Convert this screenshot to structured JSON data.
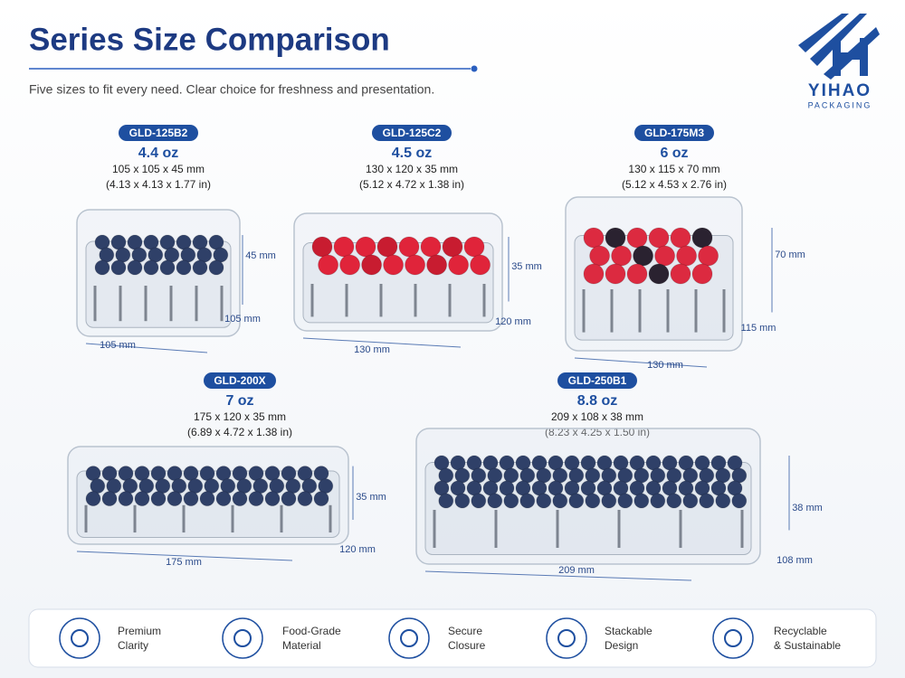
{
  "header": {
    "title": "Series Size Comparison",
    "subtitle": "Five sizes to fit every need. Clear choice for freshness and presentation."
  },
  "logo": {
    "name": "YIHAO",
    "tagline": "PACKAGING"
  },
  "products": [
    {
      "model": "GLD-125B2",
      "capacity": "4.4 oz",
      "dims_mm": "105 x 105 x 45 mm",
      "dims_in": "(4.13 x 4.13 x 1.77 in)",
      "height_label": "45 mm",
      "depth_label": "105 mm",
      "width_label": "105 mm"
    },
    {
      "model": "GLD-125C2",
      "capacity": "4.5 oz",
      "dims_mm": "130 x 120 x 35 mm",
      "dims_in": "(5.12 x 4.72 x 1.38 in)",
      "height_label": "35 mm",
      "depth_label": "120 mm",
      "width_label": "130 mm"
    },
    {
      "model": "GLD-175M3",
      "capacity": "6 oz",
      "dims_mm": "130 x 115 x 70 mm",
      "dims_in": "(5.12 x 4.53 x 2.76 in)",
      "height_label": "70 mm",
      "depth_label": "115 mm",
      "width_label": "130 mm"
    },
    {
      "model": "GLD-200X",
      "capacity": "7 oz",
      "dims_mm": "175 x 120 x 35 mm",
      "dims_in": "(6.89 x 4.72 x 1.38 in)",
      "height_label": "35 mm",
      "depth_label": "120 mm",
      "width_label": "175 mm"
    },
    {
      "model": "GLD-250B1",
      "capacity": "8.8 oz",
      "dims_mm": "209 x 108 x 38 mm",
      "dims_in": "(8.23 x 4.25 x 1.50 in)",
      "height_label": "38 mm",
      "depth_label": "108 mm",
      "width_label": "209 mm"
    }
  ],
  "features": [
    {
      "lines": [
        "Premium",
        "Clarity"
      ]
    },
    {
      "lines": [
        "Food-Grade",
        "Material"
      ]
    },
    {
      "lines": [
        "Secure",
        "Closure"
      ]
    },
    {
      "lines": [
        "Stackable",
        "Design"
      ]
    },
    {
      "lines": [
        "Recyclable",
        "& Sustainable"
      ]
    }
  ]
}
